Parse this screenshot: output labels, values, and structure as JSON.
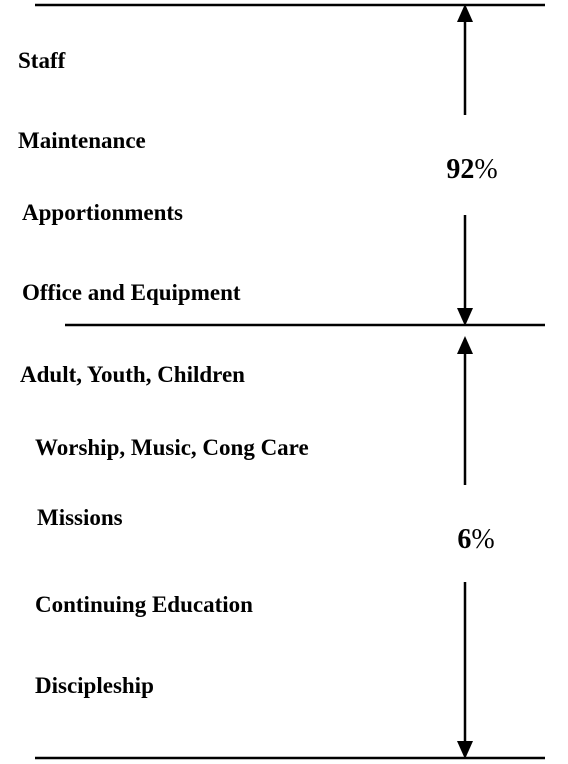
{
  "groups": [
    {
      "items": [
        "Staff",
        "Maintenance",
        "Apportionments",
        "Office and Equipment"
      ],
      "share": 92,
      "unit": "%"
    },
    {
      "items": [
        "Adult, Youth, Children",
        "Worship, Music, Cong Care",
        "Missions",
        "Continuing Education",
        "Discipleship"
      ],
      "share": 6,
      "unit": "%"
    }
  ]
}
